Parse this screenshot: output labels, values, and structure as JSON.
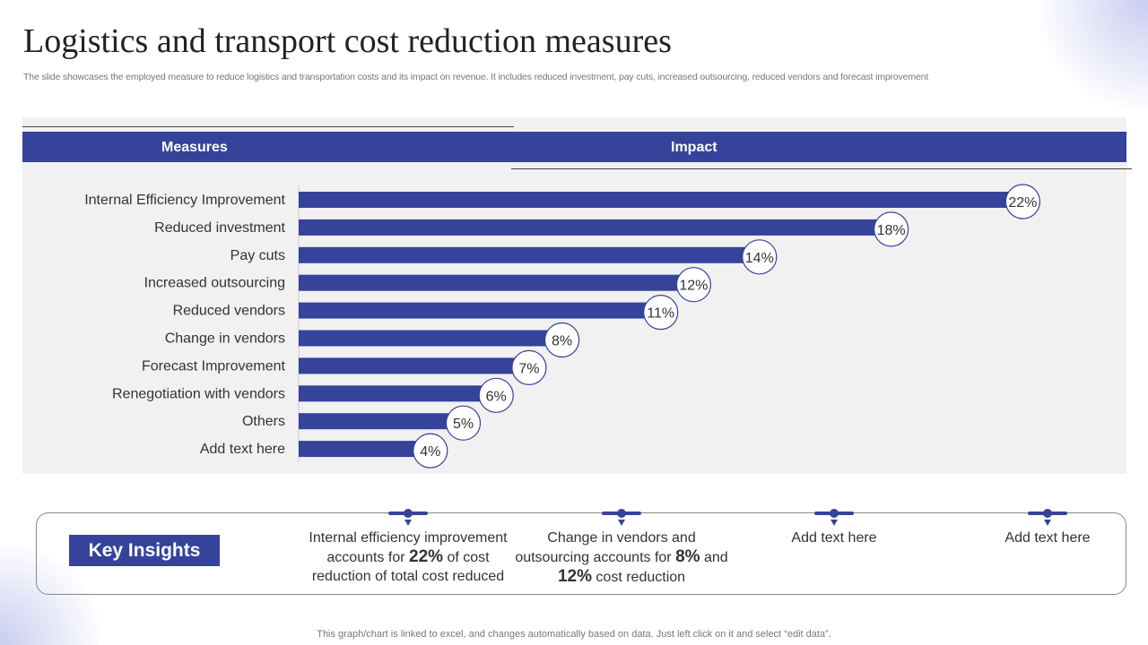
{
  "title": "Logistics and transport cost reduction measures",
  "subtitle": "The slide showcases the employed measure to reduce logistics and transportation costs and its impact on revenue. It includes reduced investment, pay cuts, increased outsourcing, reduced vendors and forecast improvement",
  "header": {
    "measures": "Measures",
    "impact": "Impact"
  },
  "chart_data": {
    "type": "bar",
    "orientation": "horizontal",
    "categories": [
      "Internal Efficiency Improvement",
      "Reduced investment",
      "Pay cuts",
      "Increased outsourcing",
      "Reduced vendors",
      "Change in vendors",
      "Forecast Improvement",
      "Renegotiation with vendors",
      "Others",
      "Add text here"
    ],
    "values": [
      22,
      18,
      14,
      12,
      11,
      8,
      7,
      6,
      5,
      4
    ],
    "labels": [
      "22%",
      "18%",
      "14%",
      "12%",
      "11%",
      "8%",
      "7%",
      "6%",
      "5%",
      "4%"
    ],
    "xlabel": "",
    "ylabel": "",
    "color": "#35439a"
  },
  "insights": {
    "title": "Key Insights",
    "items": [
      {
        "pre": "Internal  efficiency improvement accounts for ",
        "b1": "22%",
        "mid": " of cost reduction of total cost reduced",
        "b2": "",
        "post": ""
      },
      {
        "pre": "Change in vendors and outsourcing accounts for ",
        "b1": "8%",
        "mid": " and ",
        "b2": "12%",
        "post": " cost reduction"
      },
      {
        "pre": "Add text here",
        "b1": "",
        "mid": "",
        "b2": "",
        "post": ""
      },
      {
        "pre": "Add text here",
        "b1": "",
        "mid": "",
        "b2": "",
        "post": ""
      }
    ]
  },
  "footer": "This graph/chart is linked to excel, and changes automatically based on data. Just left click on it and select “edit data”."
}
